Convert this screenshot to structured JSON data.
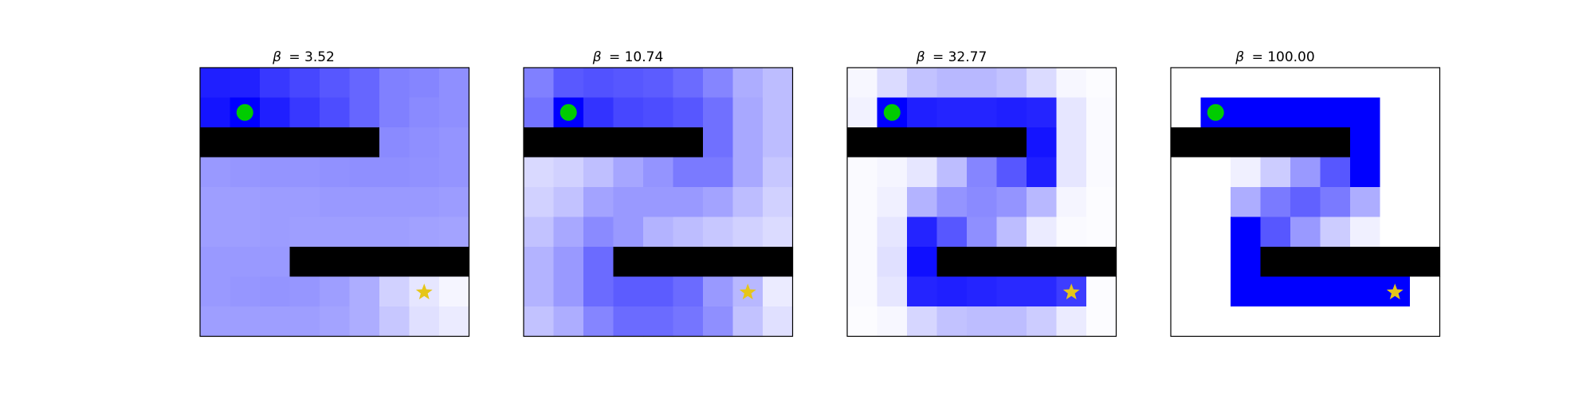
{
  "colors": {
    "start_marker": "#00cc00",
    "goal_marker": "#e6c619",
    "wall": "#000000",
    "cell_low": "#ffffff",
    "cell_high": "#0000ff",
    "frame": "#000000"
  },
  "chart_data": [
    {
      "type": "heatmap",
      "title_symbol": "β",
      "title_value": "= 3.52",
      "grid_size": [
        9,
        9
      ],
      "start_cell": [
        1,
        1
      ],
      "goal_cell": [
        7,
        7
      ],
      "intensity": [
        [
          0.88,
          0.87,
          0.78,
          0.72,
          0.66,
          0.6,
          0.5,
          0.48,
          0.44
        ],
        [
          0.92,
          1.0,
          0.88,
          0.78,
          0.7,
          0.6,
          0.5,
          0.46,
          0.44
        ],
        [
          "wall",
          "wall",
          "wall",
          "wall",
          "wall",
          "wall",
          0.46,
          0.44,
          0.42
        ],
        [
          0.4,
          0.41,
          0.42,
          0.42,
          0.43,
          0.44,
          0.44,
          0.43,
          0.42
        ],
        [
          0.38,
          0.38,
          0.39,
          0.39,
          0.4,
          0.4,
          0.4,
          0.4,
          0.39
        ],
        [
          0.38,
          0.38,
          0.39,
          0.38,
          0.38,
          0.38,
          0.38,
          0.37,
          0.36
        ],
        [
          0.4,
          0.4,
          0.4,
          "wall",
          "wall",
          "wall",
          "wall",
          "wall",
          "wall"
        ],
        [
          0.4,
          0.41,
          0.42,
          0.41,
          0.38,
          0.32,
          0.18,
          0.1,
          0.04
        ],
        [
          0.38,
          0.38,
          0.38,
          0.38,
          0.36,
          0.32,
          0.22,
          0.12,
          0.08
        ]
      ]
    },
    {
      "type": "heatmap",
      "title_symbol": "β",
      "title_value": "= 10.74",
      "grid_size": [
        9,
        9
      ],
      "start_cell": [
        1,
        1
      ],
      "goal_cell": [
        7,
        7
      ],
      "intensity": [
        [
          0.5,
          0.65,
          0.68,
          0.66,
          0.64,
          0.58,
          0.48,
          0.32,
          0.26
        ],
        [
          0.55,
          1.0,
          0.8,
          0.72,
          0.7,
          0.66,
          0.56,
          0.34,
          0.26
        ],
        [
          "wall",
          "wall",
          "wall",
          "wall",
          "wall",
          "wall",
          0.56,
          0.34,
          0.26
        ],
        [
          0.15,
          0.18,
          0.25,
          0.35,
          0.42,
          0.52,
          0.52,
          0.34,
          0.22
        ],
        [
          0.18,
          0.24,
          0.36,
          0.4,
          0.4,
          0.4,
          0.36,
          0.26,
          0.18
        ],
        [
          0.24,
          0.34,
          0.46,
          0.4,
          0.3,
          0.26,
          0.22,
          0.18,
          0.14
        ],
        [
          0.3,
          0.4,
          0.58,
          "wall",
          "wall",
          "wall",
          "wall",
          "wall",
          "wall"
        ],
        [
          0.3,
          0.4,
          0.58,
          0.64,
          0.64,
          0.58,
          0.4,
          0.28,
          0.08
        ],
        [
          0.24,
          0.32,
          0.48,
          0.58,
          0.58,
          0.54,
          0.44,
          0.24,
          0.12
        ]
      ]
    },
    {
      "type": "heatmap",
      "title_symbol": "β",
      "title_value": "= 32.77",
      "grid_size": [
        9,
        9
      ],
      "start_cell": [
        1,
        1
      ],
      "goal_cell": [
        7,
        7
      ],
      "intensity": [
        [
          0.03,
          0.14,
          0.24,
          0.28,
          0.28,
          0.24,
          0.14,
          0.03,
          0.01
        ],
        [
          0.05,
          1.0,
          0.88,
          0.86,
          0.86,
          0.88,
          0.86,
          0.1,
          0.02
        ],
        [
          "wall",
          "wall",
          "wall",
          "wall",
          "wall",
          "wall",
          0.92,
          0.1,
          0.02
        ],
        [
          0.02,
          0.04,
          0.1,
          0.26,
          0.48,
          0.66,
          0.88,
          0.1,
          0.02
        ],
        [
          0.02,
          0.06,
          0.3,
          0.42,
          0.46,
          0.42,
          0.28,
          0.04,
          0.01
        ],
        [
          0.02,
          0.1,
          0.86,
          0.66,
          0.44,
          0.26,
          0.08,
          0.02,
          0.01
        ],
        [
          0.02,
          0.12,
          0.94,
          "wall",
          "wall",
          "wall",
          "wall",
          "wall",
          "wall"
        ],
        [
          0.02,
          0.1,
          0.86,
          0.88,
          0.86,
          0.84,
          0.84,
          0.76,
          0.01
        ],
        [
          0.01,
          0.03,
          0.16,
          0.24,
          0.26,
          0.26,
          0.2,
          0.08,
          0.01
        ]
      ]
    },
    {
      "type": "heatmap",
      "title_symbol": "β",
      "title_value": "= 100.00",
      "grid_size": [
        9,
        9
      ],
      "start_cell": [
        1,
        1
      ],
      "goal_cell": [
        7,
        7
      ],
      "intensity": [
        [
          0.0,
          0.0,
          0.0,
          0.0,
          0.0,
          0.0,
          0.0,
          0.0,
          0.0
        ],
        [
          0.0,
          1.0,
          1.0,
          1.0,
          1.0,
          1.0,
          1.0,
          0.0,
          0.0
        ],
        [
          "wall",
          "wall",
          "wall",
          "wall",
          "wall",
          "wall",
          1.0,
          0.0,
          0.0
        ],
        [
          0.0,
          0.0,
          0.06,
          0.2,
          0.4,
          0.66,
          1.0,
          0.0,
          0.0
        ],
        [
          0.0,
          0.0,
          0.32,
          0.52,
          0.62,
          0.52,
          0.32,
          0.0,
          0.0
        ],
        [
          0.0,
          0.0,
          1.0,
          0.66,
          0.4,
          0.2,
          0.06,
          0.0,
          0.0
        ],
        [
          0.0,
          0.0,
          1.0,
          "wall",
          "wall",
          "wall",
          "wall",
          "wall",
          "wall"
        ],
        [
          0.0,
          0.0,
          1.0,
          1.0,
          1.0,
          1.0,
          1.0,
          1.0,
          0.0
        ],
        [
          0.0,
          0.0,
          0.0,
          0.0,
          0.0,
          0.0,
          0.0,
          0.0,
          0.0
        ]
      ]
    }
  ]
}
